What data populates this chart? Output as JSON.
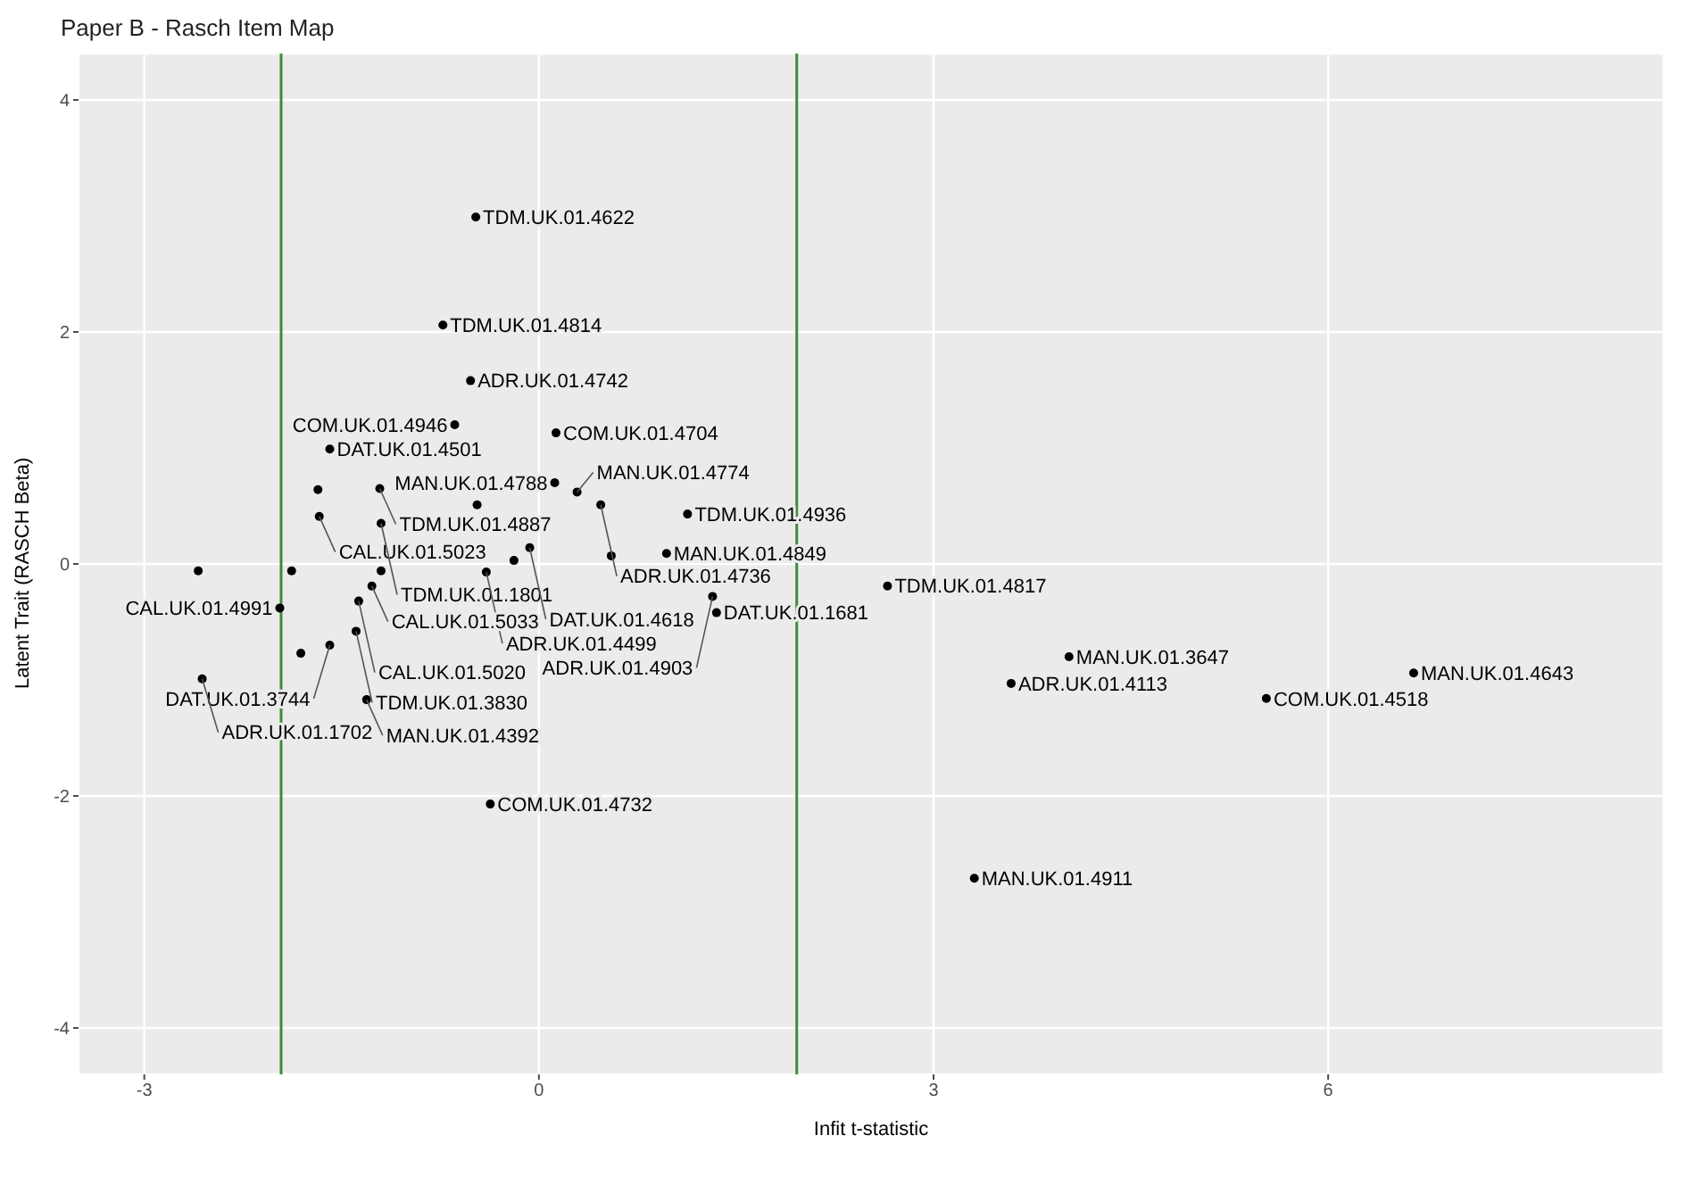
{
  "chart_data": {
    "type": "scatter",
    "title": "Paper B - Rasch Item Map",
    "marker": "circle",
    "xlabel": "Infit t-statistic",
    "ylabel": "Latent Trait (RASCH Beta)",
    "x": [
      -0.48,
      -0.73,
      -0.52,
      -0.64,
      0.13,
      -1.59,
      0.12,
      -1.68,
      -1.21,
      0.29,
      0.47,
      1.13,
      -1.67,
      -1.2,
      -0.07,
      -0.19,
      0.55,
      0.97,
      -0.4,
      -1.27,
      -1.37,
      -1.97,
      -2.59,
      -1.88,
      -1.2,
      -1.39,
      -1.59,
      -1.81,
      -2.56,
      -1.31,
      -0.37,
      1.32,
      1.35,
      2.65,
      4.03,
      3.59,
      5.53,
      6.65,
      3.31,
      -0.47
    ],
    "series": [
      {
        "type": "scatter",
        "color": "#000000",
        "values": [
          2.99,
          2.06,
          1.58,
          1.2,
          1.13,
          0.99,
          0.7,
          0.64,
          0.65,
          0.62,
          0.51,
          0.43,
          0.41,
          0.35,
          0.14,
          0.03,
          0.07,
          0.09,
          -0.07,
          -0.19,
          -0.32,
          -0.38,
          -0.06,
          -0.06,
          -0.06,
          -0.58,
          -0.7,
          -0.77,
          -0.99,
          -1.17,
          -2.07,
          -0.28,
          -0.42,
          -0.19,
          -0.8,
          -1.03,
          -1.16,
          -0.94,
          -2.71,
          0.51
        ]
      }
    ],
    "annotations": [
      {
        "text": "TDM.UK.01.4622",
        "x": -0.48,
        "y": 2.99
      },
      {
        "text": "TDM.UK.01.4814",
        "x": -0.73,
        "y": 2.06
      },
      {
        "text": "ADR.UK.01.4742",
        "x": -0.52,
        "y": 1.58
      },
      {
        "text": "COM.UK.01.4946",
        "x": -0.64,
        "y": 1.2
      },
      {
        "text": "COM.UK.01.4704",
        "x": 0.13,
        "y": 1.13
      },
      {
        "text": "DAT.UK.01.4501",
        "x": -1.59,
        "y": 0.99
      },
      {
        "text": "MAN.UK.01.4788",
        "x": 0.12,
        "y": 0.7
      },
      {
        "text": "TDM.UK.01.4887",
        "x": -1.21,
        "y": 0.65
      },
      {
        "text": "MAN.UK.01.4774",
        "x": 0.29,
        "y": 0.62
      },
      {
        "text": "ADR.UK.01.4736",
        "x": 0.47,
        "y": 0.51
      },
      {
        "text": "TDM.UK.01.4936",
        "x": 1.13,
        "y": 0.43
      },
      {
        "text": "CAL.UK.01.5023",
        "x": -1.67,
        "y": 0.41
      },
      {
        "text": "TDM.UK.01.1801",
        "x": -1.2,
        "y": 0.35
      },
      {
        "text": "DAT.UK.01.4618",
        "x": -0.07,
        "y": 0.14
      },
      {
        "text": "MAN.UK.01.4849",
        "x": 0.97,
        "y": 0.09
      },
      {
        "text": "ADR.UK.01.4499",
        "x": -0.4,
        "y": -0.07
      },
      {
        "text": "CAL.UK.01.5033",
        "x": -1.27,
        "y": -0.19
      },
      {
        "text": "CAL.UK.01.5020",
        "x": -1.37,
        "y": -0.32
      },
      {
        "text": "CAL.UK.01.4991",
        "x": -1.97,
        "y": -0.38
      },
      {
        "text": "TDM.UK.01.3830",
        "x": -1.39,
        "y": -0.58
      },
      {
        "text": "DAT.UK.01.3744",
        "x": -1.59,
        "y": -0.7
      },
      {
        "text": "ADR.UK.01.1702",
        "x": -2.56,
        "y": -0.99
      },
      {
        "text": "MAN.UK.01.4392",
        "x": -1.31,
        "y": -1.17
      },
      {
        "text": "COM.UK.01.4732",
        "x": -0.37,
        "y": -2.07
      },
      {
        "text": "ADR.UK.01.4903",
        "x": 1.32,
        "y": -0.28
      },
      {
        "text": "DAT.UK.01.1681",
        "x": 1.35,
        "y": -0.42
      },
      {
        "text": "TDM.UK.01.4817",
        "x": 2.65,
        "y": -0.19
      },
      {
        "text": "MAN.UK.01.3647",
        "x": 4.03,
        "y": -0.8
      },
      {
        "text": "ADR.UK.01.4113",
        "x": 3.59,
        "y": -1.03
      },
      {
        "text": "COM.UK.01.4518",
        "x": 5.53,
        "y": -1.16
      },
      {
        "text": "MAN.UK.01.4643",
        "x": 6.65,
        "y": -0.94
      },
      {
        "text": "MAN.UK.01.4911",
        "x": 3.31,
        "y": -2.71
      }
    ],
    "ref_lines": [
      {
        "axis": "x",
        "value": -1.96,
        "color": "#3d8b3d"
      },
      {
        "axis": "x",
        "value": 1.96,
        "color": "#3d8b3d"
      }
    ],
    "xlim": [
      -3.5,
      8.55
    ],
    "ylim": [
      -4.4,
      4.4
    ],
    "xticks": [
      -3,
      0,
      3,
      6
    ],
    "yticks": [
      -4,
      -2,
      0,
      2,
      4
    ],
    "grid": true,
    "legend": false
  }
}
